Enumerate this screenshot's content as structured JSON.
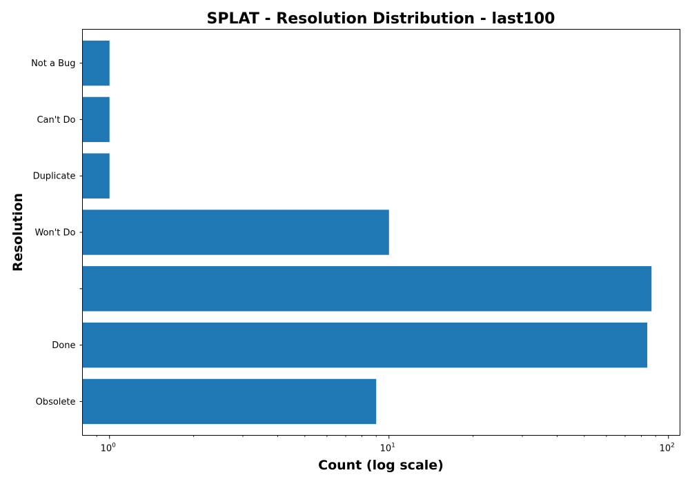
{
  "chart_data": {
    "type": "bar",
    "orientation": "horizontal",
    "title": "SPLAT - Resolution Distribution - last100",
    "xlabel": "Count (log scale)",
    "ylabel": "Resolution",
    "x_scale": "log",
    "xlim": [
      0.8,
      110
    ],
    "categories": [
      "Obsolete",
      "Done",
      "",
      "Won't Do",
      "Duplicate",
      "Can't Do",
      "Not a Bug"
    ],
    "values": [
      9,
      84,
      87,
      10,
      1,
      1,
      1
    ],
    "x_major_ticks": [
      {
        "base": "10",
        "exponent": "0",
        "value": 1
      },
      {
        "base": "10",
        "exponent": "1",
        "value": 10
      },
      {
        "base": "10",
        "exponent": "2",
        "value": 100
      }
    ],
    "bar_color": "#1f77b4",
    "grid": false,
    "legend": "none"
  }
}
